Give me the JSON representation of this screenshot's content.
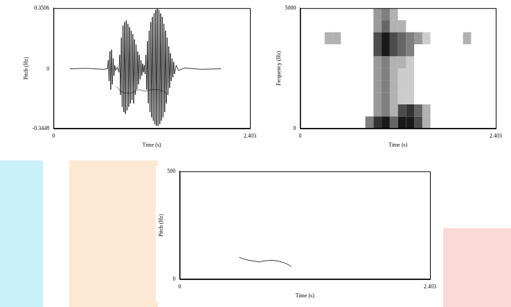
{
  "chart_data": [
    {
      "type": "line",
      "xlabel": "Time (s)",
      "ylabel": "Pitch (Hz)",
      "xlim": [
        0,
        2.403
      ],
      "xticks": [
        0,
        2.403
      ],
      "ylim": [
        -0.3448,
        0.3506
      ],
      "yticks": [
        -0.3448,
        0,
        0.3506
      ],
      "grid": false,
      "series": [
        {
          "color": "#000000",
          "x": [
            0.2,
            0.4,
            0.6,
            0.66,
            0.67,
            0.68,
            0.69,
            0.7,
            0.71,
            0.72,
            0.73,
            0.74,
            0.75,
            0.76,
            0.78,
            0.8,
            0.81,
            0.82,
            0.83,
            0.84,
            0.85,
            0.86,
            0.87,
            0.88,
            0.89,
            0.9,
            0.91,
            0.92,
            0.93,
            0.94,
            0.95,
            0.96,
            0.97,
            0.98,
            0.99,
            1.0,
            1.01,
            1.02,
            1.03,
            1.04,
            1.05,
            1.06,
            1.07,
            1.08,
            1.09,
            1.1,
            1.11,
            1.12,
            1.13,
            1.14,
            1.15,
            1.16,
            1.17,
            1.18,
            1.19,
            1.2,
            1.21,
            1.22,
            1.23,
            1.24,
            1.25,
            1.26,
            1.27,
            1.28,
            1.29,
            1.3,
            1.31,
            1.32,
            1.33,
            1.34,
            1.35,
            1.36,
            1.37,
            1.38,
            1.39,
            1.4,
            1.41,
            1.42,
            1.43,
            1.44,
            1.45,
            1.46,
            1.47,
            1.48,
            1.5,
            1.53,
            1.6,
            1.8,
            2.05
          ],
          "values": [
            0,
            0.003,
            -0.003,
            0,
            0.05,
            -0.07,
            0.1,
            -0.12,
            0.11,
            -0.09,
            0.06,
            -0.04,
            0.02,
            -0.01,
            0.01,
            -0.02,
            0.08,
            -0.15,
            0.18,
            -0.22,
            0.25,
            -0.25,
            0.27,
            -0.26,
            0.28,
            -0.24,
            0.26,
            -0.22,
            0.24,
            -0.2,
            0.22,
            -0.18,
            0.2,
            -0.2,
            0.17,
            -0.15,
            0.14,
            -0.12,
            0.1,
            -0.09,
            0.08,
            -0.06,
            0.05,
            -0.04,
            0.03,
            -0.02,
            0.02,
            -0.03,
            0.08,
            -0.12,
            0.16,
            -0.2,
            0.22,
            -0.25,
            0.27,
            -0.28,
            0.3,
            -0.3,
            0.32,
            -0.32,
            0.34,
            -0.33,
            0.35,
            -0.33,
            0.34,
            -0.32,
            0.32,
            -0.3,
            0.3,
            -0.28,
            0.26,
            -0.25,
            0.22,
            -0.2,
            0.18,
            -0.15,
            0.13,
            -0.11,
            0.09,
            -0.07,
            0.06,
            -0.05,
            0.04,
            -0.03,
            0.02,
            -0.01,
            0.005,
            -0.003,
            0
          ]
        },
        {
          "color": "#555555",
          "x": [
            0.77,
            0.82,
            0.88,
            0.95,
            1.0,
            1.05,
            1.12,
            1.2,
            1.28,
            1.35,
            1.4
          ],
          "values": [
            -0.1,
            -0.13,
            -0.14,
            -0.14,
            -0.13,
            -0.12,
            -0.13,
            -0.12,
            -0.12,
            -0.13,
            -0.15
          ]
        }
      ]
    },
    {
      "type": "heatmap",
      "xlabel": "Time (s)",
      "ylabel": "Frequency (Hz)",
      "xlim": [
        0,
        2.403
      ],
      "xticks": [
        0,
        2.403
      ],
      "ylim": [
        0,
        5000
      ],
      "yticks": [
        0,
        5000
      ],
      "grid": false,
      "color": "#000000",
      "x": [
        0.05,
        0.15,
        0.25,
        0.35,
        0.45,
        0.55,
        0.65,
        0.75,
        0.85,
        0.95,
        1.05,
        1.15,
        1.25,
        1.35,
        1.45,
        1.55,
        1.65,
        1.75,
        1.85,
        1.95,
        2.05,
        2.15,
        2.25,
        2.35
      ],
      "y": [
        250,
        750,
        1250,
        1750,
        2250,
        2750,
        3250,
        3750,
        4250,
        4750
      ],
      "cells": [
        [
          0,
          0,
          0,
          0,
          0,
          0,
          0,
          0,
          0.5,
          0.8,
          0.9,
          0.6,
          0.9,
          0.9,
          0.7,
          0.3,
          0,
          0,
          0,
          0,
          0,
          0,
          0,
          0
        ],
        [
          0,
          0,
          0,
          0,
          0,
          0,
          0,
          0,
          0,
          0.4,
          0.5,
          0.3,
          0.7,
          0.8,
          0.6,
          0.3,
          0,
          0,
          0,
          0,
          0,
          0,
          0,
          0
        ],
        [
          0,
          0,
          0,
          0,
          0,
          0,
          0,
          0,
          0,
          0.4,
          0.5,
          0.3,
          0.2,
          0.2,
          0,
          0,
          0,
          0,
          0,
          0,
          0,
          0,
          0,
          0
        ],
        [
          0,
          0,
          0,
          0,
          0,
          0,
          0,
          0,
          0,
          0.4,
          0.5,
          0.3,
          0.2,
          0.2,
          0,
          0,
          0,
          0,
          0,
          0,
          0,
          0,
          0,
          0
        ],
        [
          0,
          0,
          0,
          0,
          0,
          0,
          0,
          0,
          0,
          0.4,
          0.5,
          0.3,
          0.2,
          0.2,
          0,
          0,
          0,
          0,
          0,
          0,
          0,
          0,
          0,
          0
        ],
        [
          0,
          0,
          0,
          0,
          0,
          0,
          0,
          0,
          0,
          0.4,
          0.5,
          0.3,
          0.3,
          0.2,
          0,
          0,
          0,
          0,
          0,
          0,
          0,
          0,
          0,
          0
        ],
        [
          0,
          0,
          0,
          0,
          0,
          0,
          0,
          0,
          0,
          0.7,
          0.9,
          0.7,
          0.6,
          0.5,
          0,
          0,
          0,
          0,
          0,
          0,
          0,
          0,
          0,
          0
        ],
        [
          0,
          0,
          0,
          0.3,
          0.3,
          0,
          0,
          0,
          0,
          0.7,
          0.9,
          0.7,
          0.6,
          0.5,
          0.4,
          0.2,
          0,
          0,
          0,
          0,
          0.3,
          0,
          0,
          0
        ],
        [
          0,
          0,
          0,
          0,
          0,
          0,
          0,
          0,
          0,
          0.4,
          0.6,
          0.3,
          0.3,
          0,
          0,
          0,
          0,
          0,
          0,
          0,
          0,
          0,
          0,
          0
        ],
        [
          0,
          0,
          0,
          0,
          0,
          0,
          0,
          0,
          0,
          0.4,
          0.5,
          0.3,
          0,
          0,
          0,
          0,
          0,
          0,
          0,
          0,
          0,
          0,
          0,
          0
        ]
      ]
    },
    {
      "type": "line",
      "xlabel": "Time (s)",
      "ylabel": "Pitch (Hz)",
      "xlim": [
        0,
        2.403
      ],
      "xticks": [
        0,
        2.403
      ],
      "ylim": [
        0,
        500
      ],
      "yticks": [
        0,
        500
      ],
      "grid": false,
      "color": "#000000",
      "x": [
        0.57,
        0.6,
        0.63,
        0.66,
        0.7,
        0.74,
        0.77,
        0.8,
        0.84,
        0.88,
        0.92,
        0.96,
        1.0,
        1.04,
        1.07
      ],
      "values": [
        102,
        96,
        92,
        88,
        85,
        82,
        80,
        84,
        86,
        88,
        86,
        82,
        77,
        68,
        58
      ]
    }
  ]
}
